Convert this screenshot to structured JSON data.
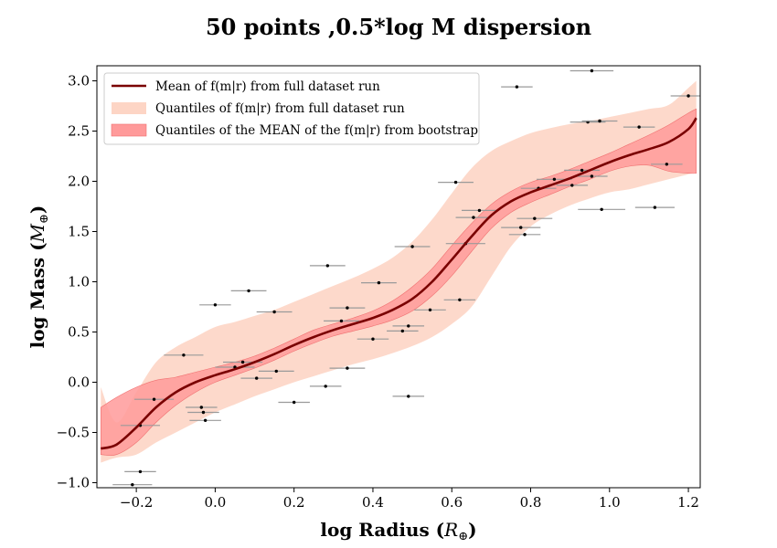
{
  "chart_data": {
    "type": "scatter",
    "title": "50 points ,0.5*log M dispersion",
    "xlabel": "log Radius (",
    "xlabel_unit": "R",
    "ylabel": "log Mass (",
    "ylabel_unit": "M",
    "unit_subscript": "⊕",
    "xlim": [
      -0.3,
      1.23
    ],
    "ylim": [
      -1.05,
      3.15
    ],
    "xticks": [
      -0.2,
      0.0,
      0.2,
      0.4,
      0.6,
      0.8,
      1.0,
      1.2
    ],
    "xtick_labels": [
      "−0.2",
      "0.0",
      "0.2",
      "0.4",
      "0.6",
      "0.8",
      "1.0",
      "1.2"
    ],
    "yticks": [
      -1.0,
      -0.5,
      0.0,
      0.5,
      1.0,
      1.5,
      2.0,
      2.5,
      3.0
    ],
    "ytick_labels": [
      "−1.0",
      "−0.5",
      "0.0",
      "0.5",
      "1.0",
      "1.5",
      "2.0",
      "2.5",
      "3.0"
    ],
    "grid": false,
    "legend_position": "top-left",
    "legend": [
      {
        "label": "Mean of f(m|r) from full dataset run",
        "kind": "line",
        "color": "#7a0000"
      },
      {
        "label": "Quantiles of f(m|r) from full dataset run",
        "kind": "patch",
        "color": "#fdd5c5"
      },
      {
        "label": "Quantiles of the MEAN of the f(m|r) from bootstrap",
        "kind": "patch",
        "color": "#ff9a9a"
      }
    ],
    "mean_curve": {
      "x": [
        -0.29,
        -0.25,
        -0.2,
        -0.15,
        -0.1,
        -0.05,
        0.0,
        0.05,
        0.1,
        0.15,
        0.2,
        0.25,
        0.3,
        0.35,
        0.4,
        0.45,
        0.5,
        0.55,
        0.6,
        0.65,
        0.7,
        0.75,
        0.8,
        0.85,
        0.9,
        0.95,
        1.0,
        1.05,
        1.1,
        1.15,
        1.2,
        1.22
      ],
      "y": [
        -0.66,
        -0.62,
        -0.45,
        -0.25,
        -0.1,
        0.0,
        0.07,
        0.13,
        0.2,
        0.28,
        0.37,
        0.45,
        0.52,
        0.58,
        0.64,
        0.72,
        0.83,
        1.0,
        1.22,
        1.45,
        1.66,
        1.8,
        1.89,
        1.96,
        2.03,
        2.11,
        2.19,
        2.26,
        2.32,
        2.39,
        2.52,
        2.63
      ]
    },
    "outer_band": {
      "x": [
        -0.29,
        -0.25,
        -0.2,
        -0.15,
        -0.1,
        -0.05,
        0.0,
        0.05,
        0.1,
        0.15,
        0.2,
        0.25,
        0.3,
        0.35,
        0.4,
        0.45,
        0.5,
        0.55,
        0.6,
        0.65,
        0.7,
        0.75,
        0.8,
        0.85,
        0.9,
        0.95,
        1.0,
        1.05,
        1.1,
        1.15,
        1.2,
        1.22
      ],
      "lower": [
        -0.8,
        -0.75,
        -0.72,
        -0.6,
        -0.5,
        -0.4,
        -0.3,
        -0.22,
        -0.14,
        -0.07,
        0.0,
        0.06,
        0.12,
        0.18,
        0.23,
        0.29,
        0.36,
        0.45,
        0.58,
        0.75,
        1.05,
        1.35,
        1.55,
        1.67,
        1.76,
        1.83,
        1.89,
        1.92,
        1.97,
        2.02,
        2.07,
        2.1
      ],
      "upper": [
        -0.05,
        -0.4,
        -0.1,
        0.2,
        0.35,
        0.45,
        0.55,
        0.6,
        0.66,
        0.72,
        0.8,
        0.88,
        0.96,
        1.04,
        1.13,
        1.24,
        1.4,
        1.62,
        1.88,
        2.13,
        2.3,
        2.4,
        2.48,
        2.53,
        2.57,
        2.6,
        2.64,
        2.68,
        2.72,
        2.76,
        2.93,
        3.0
      ]
    },
    "inner_band": {
      "x": [
        -0.29,
        -0.25,
        -0.2,
        -0.15,
        -0.1,
        -0.05,
        0.0,
        0.05,
        0.1,
        0.15,
        0.2,
        0.25,
        0.3,
        0.35,
        0.4,
        0.45,
        0.5,
        0.55,
        0.6,
        0.65,
        0.7,
        0.75,
        0.8,
        0.85,
        0.9,
        0.95,
        1.0,
        1.05,
        1.1,
        1.15,
        1.2,
        1.22
      ],
      "lower": [
        -0.72,
        -0.72,
        -0.6,
        -0.4,
        -0.23,
        -0.1,
        0.0,
        0.07,
        0.14,
        0.22,
        0.31,
        0.39,
        0.46,
        0.51,
        0.56,
        0.62,
        0.71,
        0.86,
        1.06,
        1.3,
        1.53,
        1.69,
        1.79,
        1.87,
        1.95,
        2.02,
        2.1,
        2.15,
        2.16,
        2.1,
        2.08,
        2.08
      ],
      "upper": [
        -0.25,
        -0.15,
        -0.05,
        0.02,
        0.05,
        0.1,
        0.15,
        0.2,
        0.26,
        0.34,
        0.43,
        0.52,
        0.58,
        0.64,
        0.71,
        0.81,
        0.95,
        1.13,
        1.36,
        1.58,
        1.77,
        1.9,
        1.99,
        2.05,
        2.12,
        2.2,
        2.28,
        2.37,
        2.46,
        2.56,
        2.68,
        2.72
      ]
    },
    "points": [
      {
        "x": -0.21,
        "y": -1.02,
        "xerr": 0.05
      },
      {
        "x": -0.19,
        "y": -0.89,
        "xerr": 0.04
      },
      {
        "x": -0.19,
        "y": -0.43,
        "xerr": 0.05
      },
      {
        "x": -0.155,
        "y": -0.17,
        "xerr": 0.05
      },
      {
        "x": -0.08,
        "y": 0.27,
        "xerr": 0.05
      },
      {
        "x": -0.035,
        "y": -0.25,
        "xerr": 0.04
      },
      {
        "x": -0.03,
        "y": -0.3,
        "xerr": 0.04
      },
      {
        "x": -0.025,
        "y": -0.38,
        "xerr": 0.04
      },
      {
        "x": 0.0,
        "y": 0.77,
        "xerr": 0.04
      },
      {
        "x": 0.05,
        "y": 0.15,
        "xerr": 0.05
      },
      {
        "x": 0.07,
        "y": 0.2,
        "xerr": 0.05
      },
      {
        "x": 0.085,
        "y": 0.91,
        "xerr": 0.045
      },
      {
        "x": 0.105,
        "y": 0.04,
        "xerr": 0.04
      },
      {
        "x": 0.15,
        "y": 0.7,
        "xerr": 0.045
      },
      {
        "x": 0.155,
        "y": 0.11,
        "xerr": 0.045
      },
      {
        "x": 0.2,
        "y": -0.2,
        "xerr": 0.04
      },
      {
        "x": 0.28,
        "y": -0.04,
        "xerr": 0.04
      },
      {
        "x": 0.285,
        "y": 1.16,
        "xerr": 0.045
      },
      {
        "x": 0.32,
        "y": 0.61,
        "xerr": 0.045
      },
      {
        "x": 0.335,
        "y": 0.74,
        "xerr": 0.045
      },
      {
        "x": 0.335,
        "y": 0.14,
        "xerr": 0.045
      },
      {
        "x": 0.4,
        "y": 0.43,
        "xerr": 0.04
      },
      {
        "x": 0.415,
        "y": 0.99,
        "xerr": 0.045
      },
      {
        "x": 0.475,
        "y": 0.51,
        "xerr": 0.04
      },
      {
        "x": 0.49,
        "y": 0.56,
        "xerr": 0.04
      },
      {
        "x": 0.49,
        "y": -0.14,
        "xerr": 0.04
      },
      {
        "x": 0.5,
        "y": 1.35,
        "xerr": 0.045
      },
      {
        "x": 0.545,
        "y": 0.72,
        "xerr": 0.04
      },
      {
        "x": 0.61,
        "y": 1.99,
        "xerr": 0.045
      },
      {
        "x": 0.62,
        "y": 0.82,
        "xerr": 0.04
      },
      {
        "x": 0.635,
        "y": 1.38,
        "xerr": 0.05
      },
      {
        "x": 0.655,
        "y": 1.64,
        "xerr": 0.045
      },
      {
        "x": 0.67,
        "y": 1.71,
        "xerr": 0.045
      },
      {
        "x": 0.765,
        "y": 2.94,
        "xerr": 0.04
      },
      {
        "x": 0.775,
        "y": 1.54,
        "xerr": 0.05
      },
      {
        "x": 0.785,
        "y": 1.47,
        "xerr": 0.04
      },
      {
        "x": 0.81,
        "y": 1.63,
        "xerr": 0.045
      },
      {
        "x": 0.82,
        "y": 1.93,
        "xerr": 0.045
      },
      {
        "x": 0.86,
        "y": 2.02,
        "xerr": 0.045
      },
      {
        "x": 0.905,
        "y": 1.96,
        "xerr": 0.04
      },
      {
        "x": 0.93,
        "y": 2.11,
        "xerr": 0.045
      },
      {
        "x": 0.945,
        "y": 2.59,
        "xerr": 0.045
      },
      {
        "x": 0.955,
        "y": 3.1,
        "xerr": 0.055
      },
      {
        "x": 0.955,
        "y": 2.05,
        "xerr": 0.04
      },
      {
        "x": 0.975,
        "y": 2.6,
        "xerr": 0.045
      },
      {
        "x": 0.98,
        "y": 1.72,
        "xerr": 0.06
      },
      {
        "x": 1.075,
        "y": 2.54,
        "xerr": 0.04
      },
      {
        "x": 1.115,
        "y": 1.74,
        "xerr": 0.05
      },
      {
        "x": 1.145,
        "y": 2.17,
        "xerr": 0.04
      },
      {
        "x": 1.2,
        "y": 2.85,
        "xerr": 0.045
      }
    ]
  }
}
